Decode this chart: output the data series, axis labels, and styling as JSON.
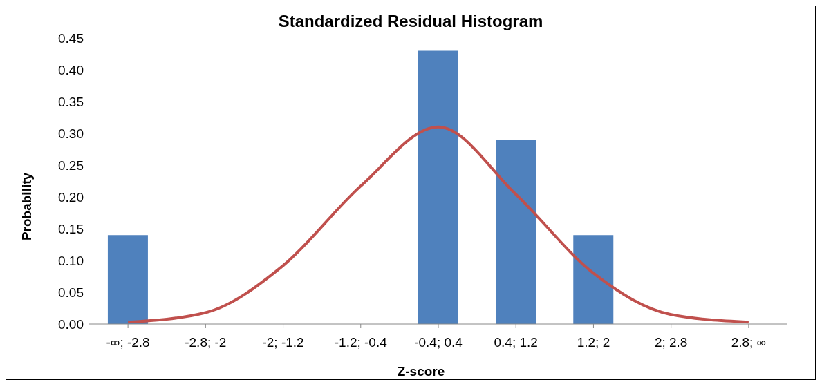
{
  "chart_data": {
    "type": "bar",
    "title": "Standardized Residual Histogram",
    "xlabel": "Z-score",
    "ylabel": "Probability",
    "categories": [
      "-∞; -2.8",
      "-2.8; -2",
      "-2; -1.2",
      "-1.2; -0.4",
      "-0.4; 0.4",
      "0.4; 1.2",
      "1.2; 2",
      "2; 2.8",
      "2.8; ∞"
    ],
    "series": [
      {
        "color": "#4f81bd",
        "values": [
          0.14,
          0,
          0,
          0,
          0.43,
          0.29,
          0.14,
          0,
          0
        ]
      },
      {
        "type": "line",
        "color": "#c0504d",
        "values": [
          0.003,
          0.018,
          0.092,
          0.217,
          0.31,
          0.204,
          0.08,
          0.015,
          0.003
        ]
      }
    ],
    "ylim": [
      0,
      0.45
    ],
    "yticks": [
      {
        "value": 0,
        "label": "0.00"
      },
      {
        "value": 0.05,
        "label": "0.05"
      },
      {
        "value": 0.1,
        "label": "0.10"
      },
      {
        "value": 0.15,
        "label": "0.15"
      },
      {
        "value": 0.2,
        "label": "0.20"
      },
      {
        "value": 0.25,
        "label": "0.25"
      },
      {
        "value": 0.3,
        "label": "0.30"
      },
      {
        "value": 0.35,
        "label": "0.35"
      },
      {
        "value": 0.4,
        "label": "0.40"
      },
      {
        "value": 0.45,
        "label": "0.45"
      }
    ],
    "marker": "none"
  }
}
